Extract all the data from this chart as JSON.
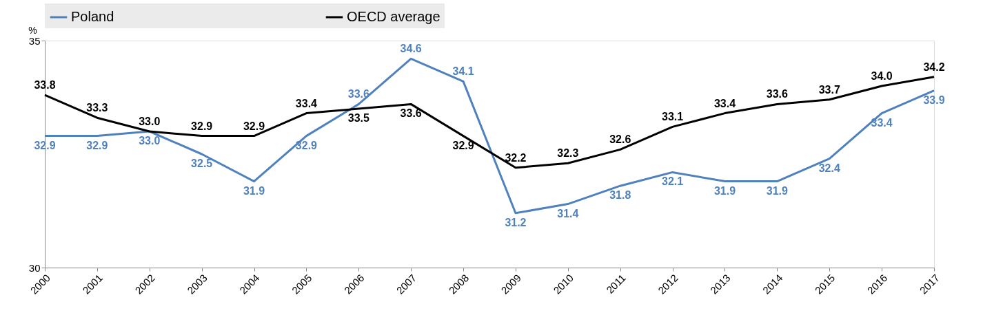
{
  "chart_data": {
    "type": "line",
    "ylabel": "%",
    "categories": [
      "2000",
      "2001",
      "2002",
      "2003",
      "2004",
      "2005",
      "2006",
      "2007",
      "2008",
      "2009",
      "2010",
      "2011",
      "2012",
      "2013",
      "2014",
      "2015",
      "2016",
      "2017"
    ],
    "series": [
      {
        "name": "Poland",
        "color": "#4f81bd",
        "values": [
          32.9,
          32.9,
          33.0,
          32.5,
          31.9,
          32.9,
          33.6,
          34.6,
          34.1,
          31.2,
          31.4,
          31.8,
          32.1,
          31.9,
          31.9,
          32.4,
          33.4,
          33.9
        ],
        "value_labels": [
          "32.9",
          "32.9",
          "33.0",
          "32.5",
          "31.9",
          "32.9",
          "33.6",
          "34.6",
          "34.1",
          "31.2",
          "31.4",
          "31.8",
          "32.1",
          "31.9",
          "31.9",
          "32.4",
          "33.4",
          "33.9"
        ]
      },
      {
        "name": "OECD average",
        "color": "#000000",
        "values": [
          33.8,
          33.3,
          33.0,
          32.9,
          32.9,
          33.4,
          33.5,
          33.6,
          32.9,
          32.2,
          32.3,
          32.6,
          33.1,
          33.4,
          33.6,
          33.7,
          34.0,
          34.2
        ],
        "value_labels": [
          "33.8",
          "33.3",
          "33.0",
          "32.9",
          "32.9",
          "33.4",
          "33.5",
          "33.6",
          "32.9",
          "32.2",
          "32.3",
          "32.6",
          "33.1",
          "33.4",
          "33.6",
          "33.7",
          "34.0",
          "34.2"
        ]
      }
    ],
    "ylim": [
      30,
      35
    ],
    "yticks": [
      30,
      35
    ],
    "grid": false,
    "legend": "top",
    "marker": "none",
    "line_style": "solid"
  }
}
